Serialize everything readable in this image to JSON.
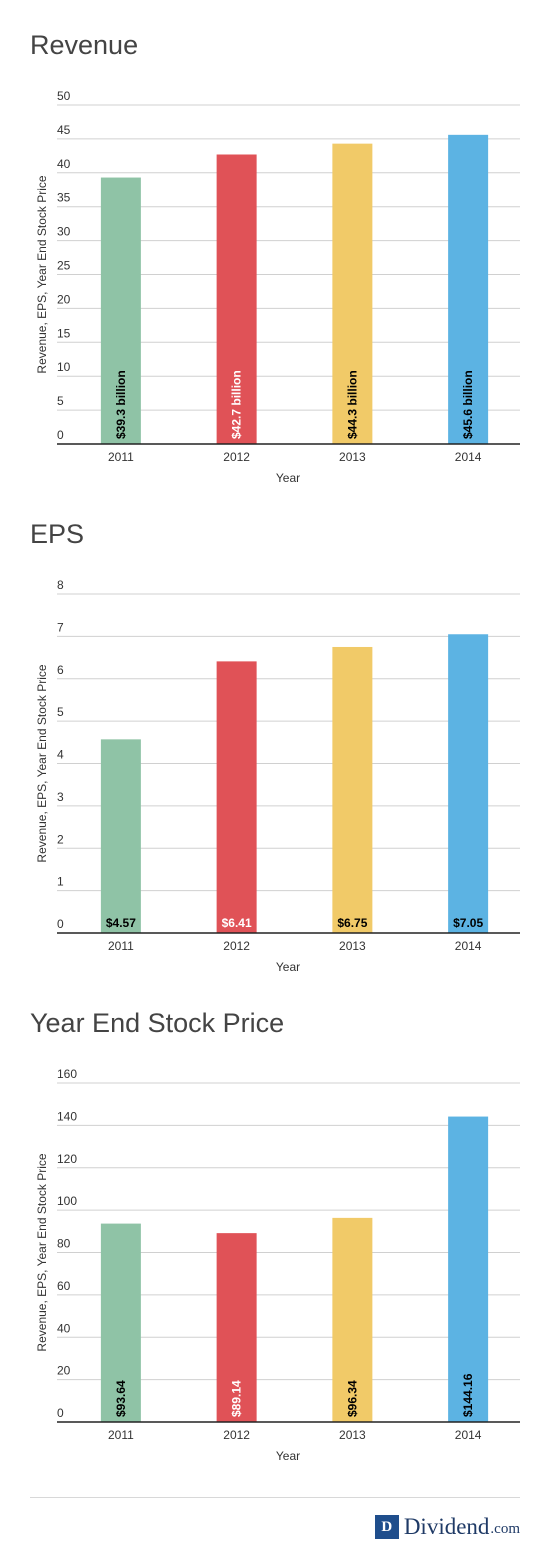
{
  "chart_data": [
    {
      "type": "bar",
      "title": "Revenue",
      "xlabel": "Year",
      "ylabel": "Revenue, EPS, Year End Stock Price",
      "categories": [
        "2011",
        "2012",
        "2013",
        "2014"
      ],
      "values": [
        39.3,
        42.7,
        44.3,
        45.6
      ],
      "data_labels": [
        "$39.3 billion",
        "$42.7 billion",
        "$44.3 billion",
        "$45.6 billion"
      ],
      "ylim": [
        0,
        50
      ],
      "yticks": [
        "0",
        "5",
        "10",
        "15",
        "20",
        "25",
        "30",
        "35",
        "40",
        "45",
        "50"
      ],
      "grid": true,
      "label_orientation": "vertical"
    },
    {
      "type": "bar",
      "title": "EPS",
      "xlabel": "Year",
      "ylabel": "Revenue, EPS, Year End Stock Price",
      "categories": [
        "2011",
        "2012",
        "2013",
        "2014"
      ],
      "values": [
        4.57,
        6.41,
        6.75,
        7.05
      ],
      "data_labels": [
        "$4.57",
        "$6.41",
        "$6.75",
        "$7.05"
      ],
      "ylim": [
        0,
        8
      ],
      "yticks": [
        "0",
        "1",
        "2",
        "3",
        "4",
        "5",
        "6",
        "7",
        "8"
      ],
      "grid": true,
      "label_orientation": "horizontal"
    },
    {
      "type": "bar",
      "title": "Year End Stock Price",
      "xlabel": "Year",
      "ylabel": "Revenue, EPS, Year End Stock Price",
      "categories": [
        "2011",
        "2012",
        "2013",
        "2014"
      ],
      "values": [
        93.64,
        89.14,
        96.34,
        144.16
      ],
      "data_labels": [
        "$93.64",
        "$89.14",
        "$96.34",
        "$144.16"
      ],
      "ylim": [
        0,
        160
      ],
      "yticks": [
        "0",
        "20",
        "40",
        "60",
        "80",
        "100",
        "120",
        "140",
        "160"
      ],
      "grid": true,
      "label_orientation": "vertical"
    }
  ],
  "colors": {
    "bars": [
      "#8fc3a6",
      "#e05257",
      "#f1ca68",
      "#5cb3e3"
    ],
    "label_text": [
      "#000000",
      "#ffffff",
      "#000000",
      "#000000"
    ],
    "grid": "#d0d0d0",
    "axis": "#222222"
  },
  "footer": {
    "logo_letter": "D",
    "logo_word": "Dividend",
    "logo_tld": ".com"
  }
}
